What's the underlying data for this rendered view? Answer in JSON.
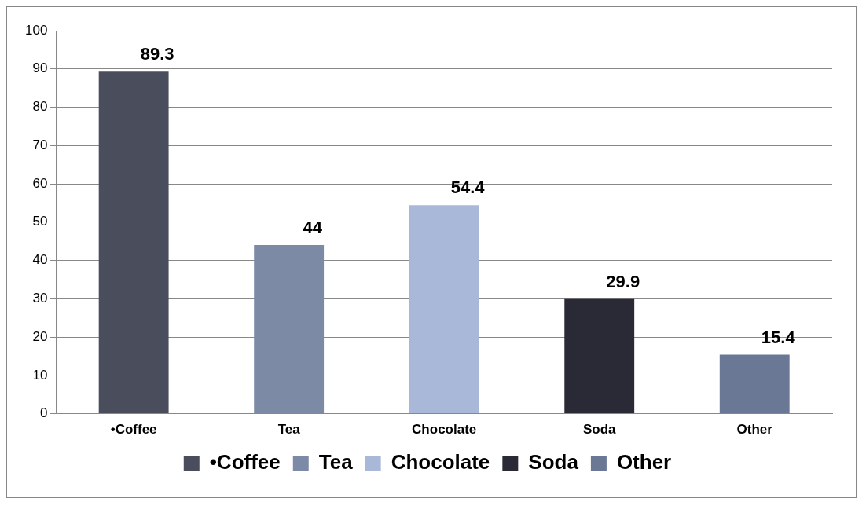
{
  "chart_data": {
    "type": "bar",
    "categories": [
      "•Coffee",
      "Tea",
      "Chocolate",
      "Soda",
      "Other"
    ],
    "series": [
      {
        "name": "•Coffee",
        "color": "#4a4e5c",
        "values": [
          89.3,
          null,
          null,
          null,
          null
        ]
      },
      {
        "name": "Tea",
        "color": "#7d8aa6",
        "values": [
          null,
          44,
          null,
          null,
          null
        ]
      },
      {
        "name": "Chocolate",
        "color": "#a9b8d8",
        "values": [
          null,
          null,
          54.4,
          null,
          null
        ]
      },
      {
        "name": "Soda",
        "color": "#2a2a36",
        "values": [
          null,
          null,
          null,
          29.9,
          null
        ]
      },
      {
        "name": "Other",
        "color": "#6a7896",
        "values": [
          null,
          null,
          null,
          null,
          15.4
        ]
      }
    ],
    "ylim": [
      0,
      100
    ],
    "yticks": [
      0,
      10,
      20,
      30,
      40,
      50,
      60,
      70,
      80,
      90,
      100
    ],
    "grid": "y",
    "legend": "bottom",
    "data_labels": true
  }
}
